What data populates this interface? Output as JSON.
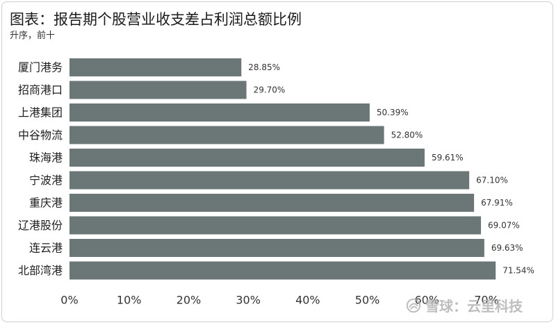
{
  "header": {
    "title": "图表：报告期个股营业收支差占利润总额比例",
    "subtitle": "升序，前十"
  },
  "watermark": {
    "icon": "snowball-logo-icon",
    "text": "雪球：云里科技"
  },
  "chart_data": {
    "type": "bar",
    "orientation": "horizontal",
    "title": "图表：报告期个股营业收支差占利润总额比例",
    "subtitle": "升序，前十",
    "categories": [
      "厦门港务",
      "招商港口",
      "上港集团",
      "中谷物流",
      "珠海港",
      "宁波港",
      "重庆港",
      "辽港股份",
      "连云港",
      "北部湾港"
    ],
    "values": [
      28.85,
      29.7,
      50.39,
      52.8,
      59.61,
      67.1,
      67.91,
      69.07,
      69.63,
      71.54
    ],
    "value_labels": [
      "28.85%",
      "29.70%",
      "50.39%",
      "52.80%",
      "59.61%",
      "67.10%",
      "67.91%",
      "69.07%",
      "69.63%",
      "71.54%"
    ],
    "xlim": [
      0,
      70
    ],
    "xticks": [
      0,
      10,
      20,
      30,
      40,
      50,
      60,
      70
    ],
    "xtick_labels": [
      "0%",
      "10%",
      "20%",
      "30%",
      "40%",
      "50%",
      "60%",
      "70%"
    ],
    "xlabel": "",
    "ylabel": "",
    "grid": false,
    "legend": "none",
    "bar_color": "#6b7677"
  }
}
